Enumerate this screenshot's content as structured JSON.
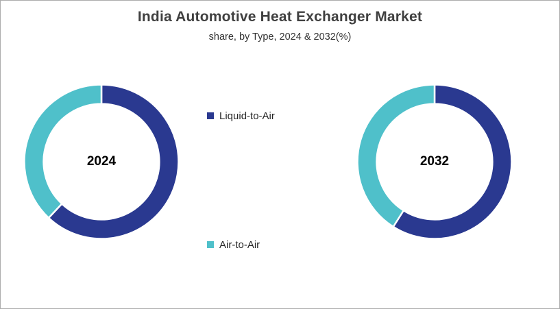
{
  "header": {
    "title": "India Automotive Heat Exchanger Market",
    "subtitle": "share, by Type, 2024 & 2032(%)"
  },
  "legend": {
    "items": [
      {
        "label": "Liquid-to-Air",
        "color": "#2A3990"
      },
      {
        "label": "Air-to-Air",
        "color": "#4FC0CA"
      }
    ]
  },
  "colors": {
    "liquid_to_air": "#2A3990",
    "air_to_air": "#4FC0CA",
    "title_text": "#404040",
    "center_label_text": "#000000",
    "frame_border": "#ACACAC"
  },
  "chart_data": [
    {
      "type": "pie",
      "subtype": "donut",
      "center_label": "2024",
      "categories": [
        "Liquid-to-Air",
        "Air-to-Air"
      ],
      "values": [
        62,
        38
      ],
      "unit": "%",
      "colors": [
        "#2A3990",
        "#4FC0CA"
      ],
      "start_angle_deg": 0,
      "direction": "clockwise",
      "hole_ratio": 0.75,
      "data_labels": false,
      "legend_position": "center-between-charts"
    },
    {
      "type": "pie",
      "subtype": "donut",
      "center_label": "2032",
      "categories": [
        "Liquid-to-Air",
        "Air-to-Air"
      ],
      "values": [
        59,
        41
      ],
      "unit": "%",
      "colors": [
        "#2A3990",
        "#4FC0CA"
      ],
      "start_angle_deg": 0,
      "direction": "clockwise",
      "hole_ratio": 0.75,
      "data_labels": false,
      "legend_position": "center-between-charts"
    }
  ]
}
